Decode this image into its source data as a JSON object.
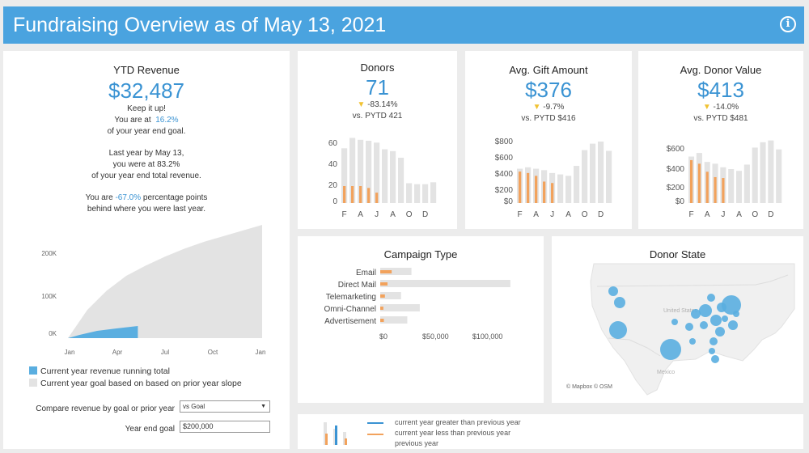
{
  "header": {
    "title": "Fundraising Overview as of May 13, 2021",
    "info_icon": "info-icon"
  },
  "ytd": {
    "title": "YTD Revenue",
    "value": "$32,487",
    "line1": "Keep it up!",
    "line2_prefix": "You are at",
    "line2_value": "16.2%",
    "line3": "of your year end goal.",
    "line4": "Last year by May 13,",
    "line5_prefix": "you were at",
    "line5_value": "83.2%",
    "line6": "of your year end total revenue.",
    "line7_prefix": "You are",
    "line7_value": "-67.0%",
    "line7_suffix": "percentage points",
    "line8": "behind where you were last year."
  },
  "running": {
    "yticks": [
      "200K",
      "100K",
      "0K"
    ],
    "xticks": [
      "Jan",
      "Apr",
      "Jul",
      "Oct",
      "Jan"
    ],
    "legend_current": "Current year revenue running total",
    "legend_goal": "Current year goal based on based on prior year slope",
    "colors": {
      "current": "#5aaee0",
      "goal": "#e3e3e3"
    }
  },
  "controls": {
    "compare_label": "Compare revenue  by goal or prior year",
    "compare_value": "vs Goal",
    "goal_label": "Year end goal",
    "goal_value": "$200,000"
  },
  "donors": {
    "title": "Donors",
    "value": "71",
    "change": "-83.14%",
    "pytd": "vs. PYTD 421",
    "yticks": [
      "60",
      "40",
      "20",
      "0"
    ],
    "xticks": [
      "F",
      "A",
      "J",
      "A",
      "O",
      "D"
    ],
    "prior": [
      58,
      69,
      67,
      66,
      64,
      57,
      55,
      48,
      21,
      20,
      20,
      22
    ],
    "current": [
      18,
      18,
      18,
      16,
      11
    ],
    "ymax": 72
  },
  "gift": {
    "title": "Avg. Gift Amount",
    "value": "$376",
    "change": "-9.7%",
    "pytd": "vs. PYTD $416",
    "yticks": [
      "$800",
      "$600",
      "$400",
      "$200",
      "$0"
    ],
    "xticks": [
      "F",
      "A",
      "J",
      "A",
      "O",
      "D"
    ],
    "prior": [
      480,
      500,
      480,
      460,
      420,
      400,
      380,
      520,
      740,
      830,
      860,
      730
    ],
    "current": [
      440,
      420,
      380,
      300,
      280
    ],
    "ymax": 950
  },
  "donor_value": {
    "title": "Avg. Donor Value",
    "value": "$413",
    "change": "-14.0%",
    "pytd": "vs. PYTD $481",
    "yticks": [
      "$600",
      "$400",
      "$200",
      "$0"
    ],
    "xticks": [
      "F",
      "A",
      "J",
      "A",
      "O",
      "D"
    ],
    "prior": [
      520,
      560,
      460,
      440,
      400,
      380,
      360,
      430,
      620,
      680,
      700,
      600
    ],
    "current": [
      480,
      440,
      350,
      290,
      280
    ],
    "ymax": 760
  },
  "campaign": {
    "title": "Campaign Type",
    "categories": [
      "Email",
      "Direct Mail",
      "Telemarketing",
      "Omni-Channel",
      "Advertisement"
    ],
    "prior": [
      30000,
      125000,
      20000,
      38000,
      26000
    ],
    "current": [
      11000,
      7000,
      4500,
      3000,
      3500
    ],
    "xticks": [
      "$0",
      "$50,000",
      "$100,000"
    ],
    "xmax": 150000
  },
  "state": {
    "title": "Donor State",
    "map_label_a": "United States",
    "map_label_b": "Mexico",
    "attribution": "© Mapbox  © OSM"
  },
  "footer_legend": {
    "greater": "current year greater than previous year",
    "less": "current year less than previous year",
    "previous": "previous year"
  }
}
